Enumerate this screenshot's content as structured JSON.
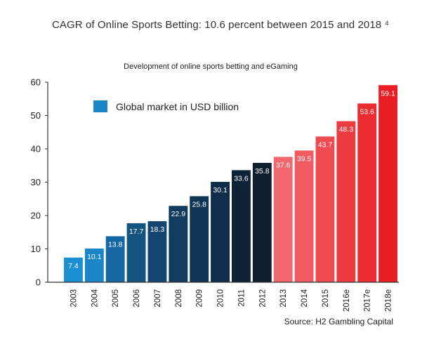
{
  "header": {
    "title": "CAGR of Online Sports Betting: 10.6 percent between 2015 and 2018 ⁴"
  },
  "chart_data": {
    "type": "bar",
    "title": "Development of online sports betting and eGaming",
    "categories": [
      "2003",
      "2004",
      "2005",
      "2006",
      "2007",
      "2008",
      "2009",
      "2010",
      "2011",
      "2012",
      "2013",
      "2014",
      "2015",
      "2016e",
      "2017e",
      "2018e"
    ],
    "series": [
      {
        "name": "Global market in USD billion",
        "values": [
          7.4,
          10.1,
          13.8,
          17.7,
          18.3,
          22.9,
          25.8,
          30.1,
          33.6,
          35.8,
          37.6,
          39.5,
          43.7,
          48.3,
          53.6,
          59.1
        ],
        "data_labels": [
          "7.4",
          "10.1",
          "13.8",
          "17.7",
          "18.3",
          "22.9",
          "25.8",
          "30.1",
          "33.6",
          "35.8",
          "37.6",
          "39.5",
          "43.7",
          "48.3",
          "53.6",
          "59.1"
        ]
      }
    ],
    "bar_colors": [
      "#1b8fd1",
      "#1a86c8",
      "#1568a3",
      "#14557f",
      "#124670",
      "#113c60",
      "#103554",
      "#0f2d48",
      "#0e2238",
      "#0e1e2c",
      "#f2666d",
      "#f05b62",
      "#ee4b51",
      "#ec3c42",
      "#ea2c31",
      "#e81e24"
    ],
    "xlabel": "",
    "ylabel": "",
    "ylim": [
      0,
      60
    ],
    "yticks": [
      "0",
      "10",
      "20",
      "30",
      "40",
      "50",
      "60"
    ],
    "grid": false,
    "legend": {
      "position": "top-left",
      "label": "Global market in USD billion",
      "color": "#1a86c8"
    },
    "source": "Source: H2 Gambling Capital"
  }
}
